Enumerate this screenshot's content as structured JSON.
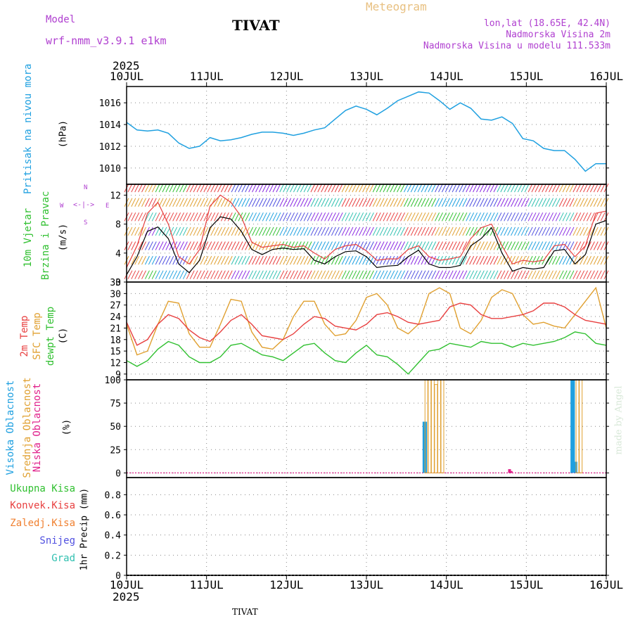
{
  "header": {
    "model_label": "Model",
    "model_name": "wrf-nmm_v3.9.1 e1km",
    "station": "TIVAT",
    "meteogram": "Meteogram",
    "lonlat": "lon,lat (18.65E, 42.4N)",
    "height": "Nadmorska Visina 2m",
    "model_height": "Nadmorska Visina u modelu 111.533m",
    "year_top": "2025",
    "year_bottom": "2025",
    "footer_station": "TIVAT",
    "credit": "made by Angel"
  },
  "colors": {
    "pressure": "#1fa0e0",
    "temp2m": "#e84040",
    "sfc": "#e0a030",
    "dewpt": "#30c030",
    "high_cloud": "#1fa0e0",
    "mid_cloud": "#e0a030",
    "low_cloud": "#e0208a",
    "total_precip": "#30c030",
    "convective": "#e84040",
    "frozen": "#f08030",
    "snow": "#5050e0",
    "graupel": "#30c0b0",
    "wind_label": "#30c030",
    "purple": "#b040d0"
  },
  "chart_data": [
    {
      "type": "line",
      "panel": "pressure",
      "ylabel_main": "Pritisak na nivou mora",
      "ylabel_unit": "(hPa)",
      "x_ticks": [
        "10JUL",
        "11JUL",
        "12JUL",
        "13JUL",
        "14JUL",
        "15JUL",
        "16JUL"
      ],
      "ylim": [
        1008.5,
        1017.5
      ],
      "y_ticks": [
        1010,
        1012,
        1014,
        1016
      ],
      "series": [
        {
          "values": [
            1014.2,
            1013.5,
            1013.4,
            1013.5,
            1013.2,
            1012.3,
            1011.8,
            1012.0,
            1012.8,
            1012.5,
            1012.6,
            1012.8,
            1013.1,
            1013.3,
            1013.3,
            1013.2,
            1013.0,
            1013.2,
            1013.5,
            1013.7,
            1014.5,
            1015.3,
            1015.7,
            1015.4,
            1014.9,
            1015.5,
            1016.2,
            1016.6,
            1017.0,
            1016.9,
            1016.2,
            1015.4,
            1016.0,
            1015.5,
            1014.5,
            1014.4,
            1014.7,
            1014.1,
            1012.7,
            1012.5,
            1011.8,
            1011.6,
            1011.6,
            1010.8,
            1009.7,
            1010.4,
            1010.4
          ]
        }
      ]
    },
    {
      "type": "line",
      "panel": "wind",
      "ylabel_main": "10m Vjetar",
      "ylabel_sub": "Brzina i Pravac",
      "ylabel_unit": "(m/s)",
      "compass": {
        "n": "N",
        "w": "W",
        "e": "E",
        "s": "S"
      },
      "ylim": [
        0,
        13.5
      ],
      "y_ticks": [
        0,
        4,
        8,
        12
      ],
      "series": [
        {
          "name": "speed",
          "values": [
            1.0,
            3.5,
            7.0,
            7.6,
            6.0,
            2.5,
            1.3,
            3.0,
            7.5,
            9.0,
            8.7,
            7.0,
            4.5,
            3.8,
            4.5,
            4.7,
            4.5,
            4.6,
            3.0,
            2.5,
            3.5,
            4.2,
            4.3,
            3.5,
            2.0,
            2.2,
            2.3,
            3.5,
            4.4,
            2.5,
            2.0,
            2.0,
            2.3,
            5.0,
            6.0,
            7.5,
            4.0,
            1.5,
            2.0,
            1.8,
            2.0,
            4.3,
            4.5,
            2.5,
            3.8,
            8.0,
            8.5
          ]
        },
        {
          "name": "gust",
          "values": [
            2.0,
            5.0,
            9.5,
            11.0,
            8.0,
            3.5,
            2.5,
            4.5,
            10.5,
            12.0,
            11.0,
            9.0,
            5.5,
            4.8,
            5.0,
            5.2,
            4.8,
            5.0,
            4.0,
            3.2,
            4.5,
            5.0,
            5.2,
            4.3,
            3.0,
            3.2,
            3.2,
            4.5,
            5.0,
            3.5,
            3.0,
            3.2,
            3.5,
            6.0,
            7.5,
            8.0,
            5.0,
            2.5,
            3.0,
            2.8,
            3.0,
            5.0,
            5.2,
            3.5,
            5.0,
            9.5,
            9.8
          ]
        }
      ]
    },
    {
      "type": "line",
      "panel": "temperature",
      "ylabel_lines": [
        "2m Temp",
        "SFC Temp",
        "dewpt Temp"
      ],
      "ylabel_unit": "(C)",
      "ylim": [
        7.5,
        33
      ],
      "y_ticks": [
        9,
        12,
        15,
        18,
        21,
        24,
        27,
        30,
        33
      ],
      "series": [
        {
          "name": "2m Temp",
          "values": [
            22.5,
            16.5,
            18.0,
            22.0,
            24.5,
            23.5,
            20.5,
            18.5,
            17.5,
            20.0,
            23.0,
            24.5,
            22.0,
            19.0,
            18.5,
            18.0,
            19.5,
            22.0,
            24.0,
            23.5,
            21.5,
            21.0,
            20.5,
            22.0,
            24.5,
            25.0,
            24.0,
            22.5,
            22.0,
            22.5,
            23.0,
            26.5,
            27.5,
            27.0,
            24.5,
            23.5,
            23.5,
            24.0,
            24.5,
            25.5,
            27.5,
            27.5,
            26.5,
            24.5,
            23.0,
            22.5,
            22.0
          ]
        },
        {
          "name": "SFC Temp",
          "values": [
            22.0,
            14.0,
            15.0,
            22.0,
            28.0,
            27.5,
            19.5,
            16.0,
            16.0,
            22.0,
            28.5,
            28.0,
            20.0,
            16.0,
            15.5,
            18.0,
            24.0,
            28.0,
            28.0,
            22.0,
            19.0,
            19.5,
            23.0,
            29.0,
            30.0,
            27.0,
            21.0,
            19.5,
            22.0,
            30.0,
            31.5,
            30.0,
            21.0,
            19.5,
            23.0,
            29.0,
            31.0,
            30.0,
            24.5,
            22.0,
            22.5,
            21.5,
            21.0,
            24.5,
            28.0,
            31.5,
            21.0
          ]
        },
        {
          "name": "dewpt Temp",
          "values": [
            12.5,
            11.0,
            12.5,
            15.5,
            17.5,
            16.5,
            13.5,
            12.0,
            12.0,
            13.5,
            16.5,
            17.0,
            15.5,
            14.0,
            13.5,
            12.5,
            14.5,
            16.5,
            17.0,
            14.5,
            12.5,
            12.0,
            14.5,
            16.5,
            14.0,
            13.5,
            11.5,
            9.0,
            12.0,
            15.0,
            15.5,
            17.0,
            16.5,
            16.0,
            17.5,
            17.0,
            17.0,
            16.0,
            17.0,
            16.5,
            17.0,
            17.5,
            18.5,
            20.0,
            19.5,
            17.0,
            16.5
          ]
        }
      ]
    },
    {
      "type": "bar",
      "panel": "cloud",
      "ylabel_lines": [
        "Visoka Oblacnost",
        "Srednja Oblacnost",
        "Niska Oblacnost"
      ],
      "ylabel_unit": "(%)",
      "ylim": [
        -5,
        100
      ],
      "y_ticks": [
        0,
        25,
        50,
        75,
        100
      ],
      "series": [
        {
          "name": "Visoka Oblacnost",
          "points": [
            [
              3.72,
              55
            ],
            [
              3.74,
              55
            ],
            [
              5.57,
              100
            ],
            [
              5.59,
              100
            ],
            [
              5.62,
              12
            ]
          ]
        },
        {
          "name": "Srednja Oblacnost",
          "points": [
            [
              3.75,
              100
            ],
            [
              3.79,
              100
            ],
            [
              3.83,
              100
            ],
            [
              3.87,
              95
            ],
            [
              3.91,
              100
            ],
            [
              3.95,
              100
            ],
            [
              5.64,
              100
            ],
            [
              5.68,
              100
            ]
          ]
        },
        {
          "name": "Niska Oblacnost",
          "points": [
            [
              4.79,
              4
            ],
            [
              4.81,
              2
            ]
          ]
        }
      ]
    },
    {
      "type": "bar",
      "panel": "precip",
      "ylabel_lines": [
        "Ukupna Kisa",
        "Konvek.Kisa",
        "Zaledj.Kisa",
        "Snijeg",
        "Grad"
      ],
      "ylabel_unit": "1hr Precip (mm)",
      "ylim": [
        0,
        0.97
      ],
      "y_ticks": [
        0,
        0.2,
        0.4,
        0.6,
        0.8
      ],
      "y_tick_labels": [
        "0",
        "0.2",
        "0.4",
        "0.6",
        "0.8"
      ],
      "values": []
    }
  ]
}
